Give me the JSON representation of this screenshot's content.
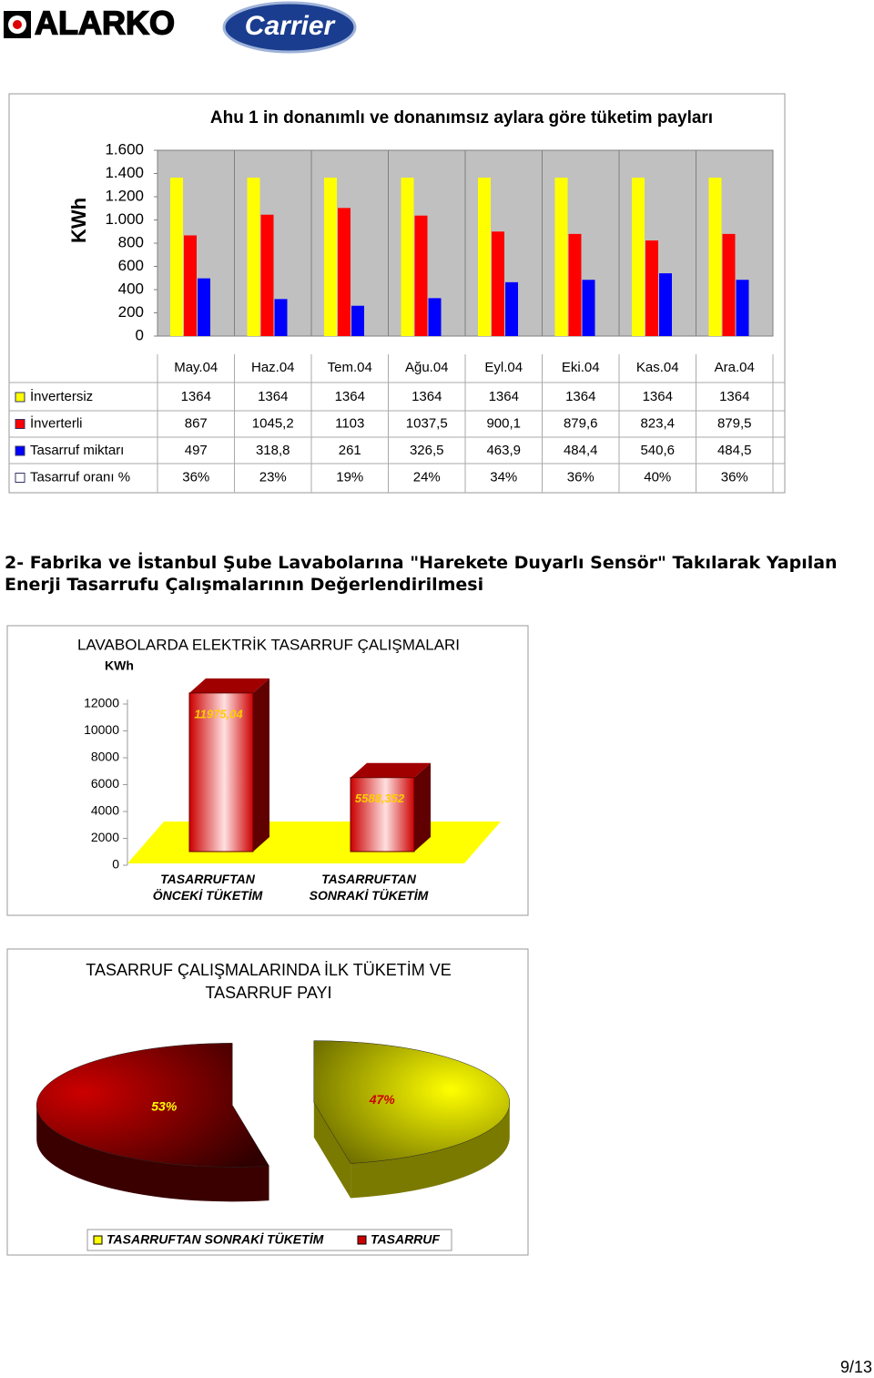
{
  "header": {
    "logo_left": "ALARKO",
    "logo_right": "Carrier"
  },
  "chart_data": [
    {
      "type": "bar",
      "title": "Ahu 1 in donanımlı ve donanımsız aylara göre tüketim payları",
      "y_label": "KWh",
      "categories": [
        "May.04",
        "Haz.04",
        "Tem.04",
        "Ağu.04",
        "Eyl.04",
        "Eki.04",
        "Kas.04",
        "Ara.04"
      ],
      "series": [
        {
          "name": "İnvertersiz",
          "color": "#ffff00",
          "values": [
            1364,
            1364,
            1364,
            1364,
            1364,
            1364,
            1364,
            1364
          ]
        },
        {
          "name": "İnverterli",
          "color": "#ff0000",
          "values": [
            867,
            1045.2,
            1103,
            1037.5,
            900.1,
            879.6,
            823.4,
            879.5
          ],
          "value_labels": [
            "867",
            "1045,2",
            "1103",
            "1037,5",
            "900,1",
            "879,6",
            "823,4",
            "879,5"
          ]
        },
        {
          "name": "Tasarruf miktarı",
          "color": "#0000ff",
          "values": [
            497,
            318.8,
            261,
            326.5,
            463.9,
            484.4,
            540.6,
            484.5
          ],
          "value_labels": [
            "497",
            "318,8",
            "261",
            "326,5",
            "463,9",
            "484,4",
            "540,6",
            "484,5"
          ]
        }
      ],
      "ratio_row": {
        "name": "Tasarruf oranı %",
        "color": "#ffffff",
        "values": [
          36,
          23,
          19,
          24,
          34,
          36,
          40,
          36
        ],
        "value_labels": [
          "36%",
          "23%",
          "19%",
          "24%",
          "34%",
          "36%",
          "40%",
          "36%"
        ]
      },
      "ylim": [
        0,
        1600
      ],
      "yticks": [
        0,
        200,
        400,
        600,
        800,
        {
          "value": 1000,
          "label": "1.000"
        },
        {
          "value": 1200,
          "label": "1.200"
        },
        {
          "value": 1400,
          "label": "1.400"
        },
        {
          "value": 1600,
          "label": "1.600"
        }
      ]
    },
    {
      "type": "bar3d",
      "title": "LAVABOLARDA ELEKTRİK TASARRUF ÇALIŞMALARI",
      "y_label": "KWh",
      "categories": [
        "TASARRUFTAN ÖNCEKİ TÜKETİM",
        "TASARRUFTAN SONRAKİ TÜKETİM"
      ],
      "values": [
        11975.04,
        5588.352
      ],
      "value_labels": [
        "11975,04",
        "5588,352"
      ],
      "color": "#cc0000",
      "floor_color": "#ffff00",
      "ylim": [
        0,
        12000
      ],
      "yticks": [
        0,
        2000,
        4000,
        6000,
        8000,
        10000,
        12000
      ]
    },
    {
      "type": "pie3d",
      "title": "TASARRUF ÇALIŞMALARINDA İLK TÜKETİM VE TASARRUF PAYI",
      "categories": [
        "TASARRUFTAN SONRAKİ TÜKETİM",
        "TASARRUF"
      ],
      "values": [
        47,
        53
      ],
      "value_labels": [
        "47%",
        "53%"
      ],
      "colors": [
        "#ffff00",
        "#cc0000"
      ]
    }
  ],
  "section_heading": "2- Fabrika ve İstanbul Şube Lavabolarına \"Harekete Duyarlı Sensör\" Takılarak Yapılan Enerji Tasarrufu Çalışmalarının Değerlendirilmesi",
  "page_number": "9/13"
}
